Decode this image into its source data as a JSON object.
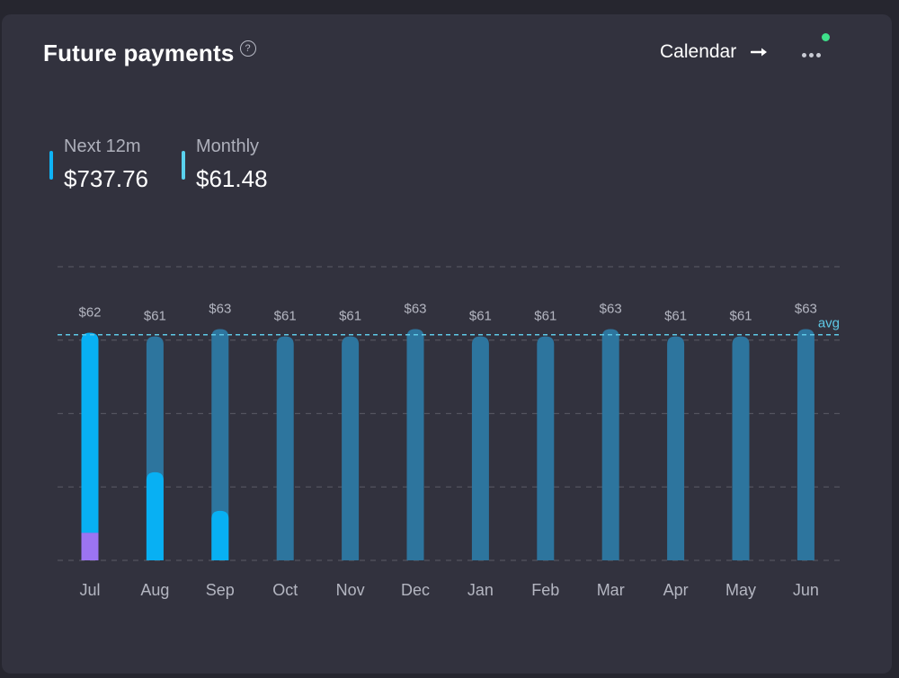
{
  "header": {
    "title": "Future payments",
    "help_icon": "?",
    "calendar_label": "Calendar",
    "arrow_icon": "arrow-right-icon",
    "more_icon": "more-horizontal-icon"
  },
  "stats": [
    {
      "label": "Next 12m",
      "value": "$737.76",
      "marker_color": "#0fb3f5"
    },
    {
      "label": "Monthly",
      "value": "$61.48",
      "marker_color": "#5ad2ee"
    }
  ],
  "colors": {
    "planned": "#2d759e",
    "paid": "#08b0f3",
    "overdue": "#9c74f2",
    "avg_line": "#5ec8e6",
    "grid": "#54545f",
    "status_dot": "#3ee08a"
  },
  "chart_data": {
    "type": "bar",
    "categories": [
      "Jul",
      "Aug",
      "Sep",
      "Oct",
      "Nov",
      "Dec",
      "Jan",
      "Feb",
      "Mar",
      "Apr",
      "May",
      "Jun"
    ],
    "value_labels": [
      "$62",
      "$61",
      "$63",
      "$61",
      "$61",
      "$63",
      "$61",
      "$61",
      "$63",
      "$61",
      "$61",
      "$63"
    ],
    "series": [
      {
        "values": [
          62,
          61,
          63,
          61,
          61,
          63,
          61,
          61,
          63,
          61,
          61,
          63
        ]
      },
      {
        "values": [
          54.5,
          24,
          13.5,
          0,
          0,
          0,
          0,
          0,
          0,
          0,
          0,
          0
        ]
      },
      {
        "values": [
          7.5,
          0,
          0,
          0,
          0,
          0,
          0,
          0,
          0,
          0,
          0,
          0
        ]
      }
    ],
    "avg": 61.48,
    "avg_label": "avg",
    "ylim": [
      0,
      80
    ],
    "grid": true
  }
}
